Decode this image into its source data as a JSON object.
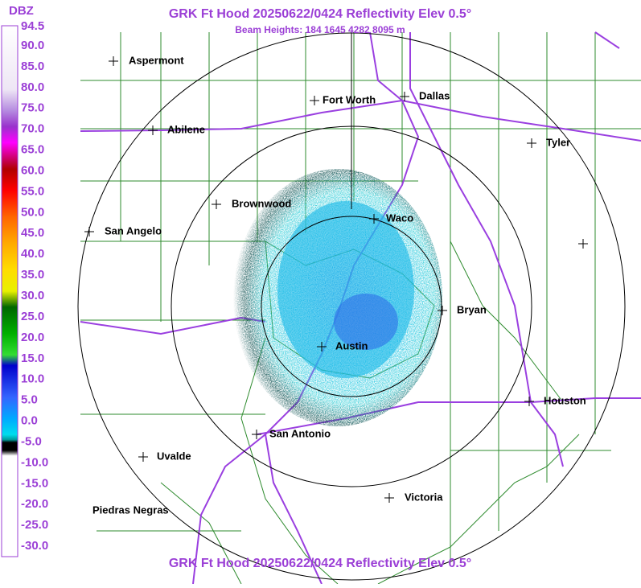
{
  "header": {
    "title": "GRK Ft Hood 20250622/0424 Reflectivity Elev 0.5°",
    "subtitle": "Beam Heights: 184 1645 4282 8095 m"
  },
  "footer": {
    "title": "GRK Ft Hood 20250622/0424 Reflectivity Elev 0.5°"
  },
  "legend": {
    "unit": "DBZ",
    "labels": [
      "94.5",
      "90.0",
      "85.0",
      "80.0",
      "75.0",
      "70.0",
      "65.0",
      "60.0",
      "55.0",
      "50.0",
      "45.0",
      "40.0",
      "35.0",
      "30.0",
      "25.0",
      "20.0",
      "15.0",
      "10.0",
      "5.0",
      "0.0",
      "-5.0",
      "-10.0",
      "-15.0",
      "-20.0",
      "-25.0",
      "-30.0"
    ]
  },
  "cities": [
    "Aspermont",
    "Fort Worth",
    "Dallas",
    "Abilene",
    "Tyler",
    "Brownwood",
    "Waco",
    "San Angelo",
    "Bryan",
    "Austin",
    "Houston",
    "San Antonio",
    "Uvalde",
    "Victoria",
    "Piedras Negras"
  ]
}
